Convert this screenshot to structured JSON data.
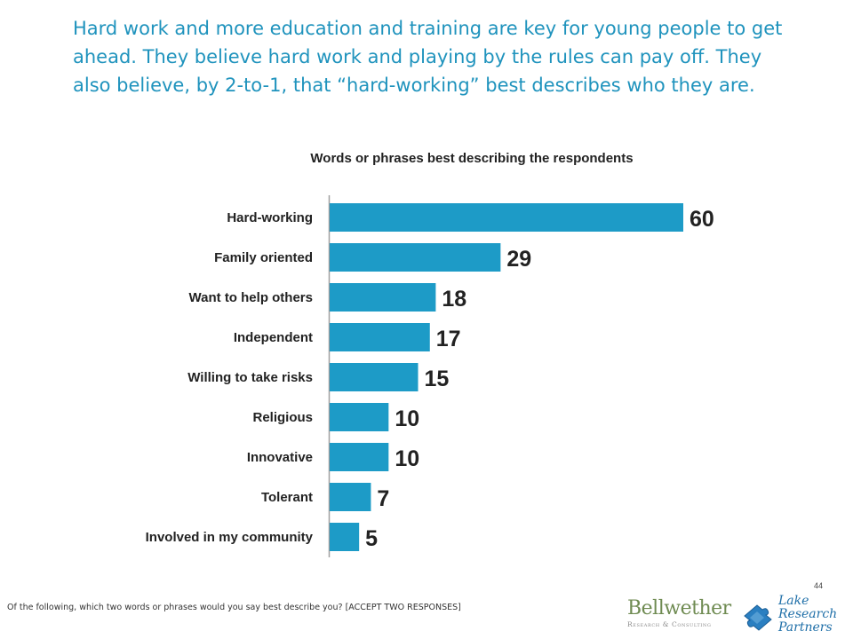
{
  "headline": "Hard work and more education and training are key for young people to get ahead.  They believe hard work and playing by the rules can pay off. They also believe, by 2-to-1, that “hard-working” best describes who they are.",
  "chart_data": {
    "type": "bar",
    "orientation": "horizontal",
    "title": "Words or phrases best describing the respondents",
    "categories": [
      "Hard-working",
      "Family oriented",
      "Want to help others",
      "Independent",
      "Willing to take risks",
      "Religious",
      "Innovative",
      "Tolerant",
      "Involved in my community"
    ],
    "values": [
      60,
      29,
      18,
      17,
      15,
      10,
      10,
      7,
      5
    ],
    "xlim": [
      0,
      60
    ],
    "grid": false,
    "legend": "none",
    "bar_color": "#1d9bc7"
  },
  "footnote": "Of the following, which two words or phrases would you say best describe you? [ACCEPT TWO RESPONSES]",
  "page_number": "44",
  "logos": {
    "bellwether_name": "Bellwether",
    "bellwether_sub": "Research & Consulting",
    "lake_line1": "Lake",
    "lake_line2": "Research",
    "lake_line3": "Partners"
  },
  "colors": {
    "headline": "#1f93bd",
    "bar": "#1d9bc7",
    "bellwether": "#6f8b52",
    "lake": "#1f6fa8"
  },
  "icons": {
    "lake_logo": "puzzle-piece-icon"
  }
}
